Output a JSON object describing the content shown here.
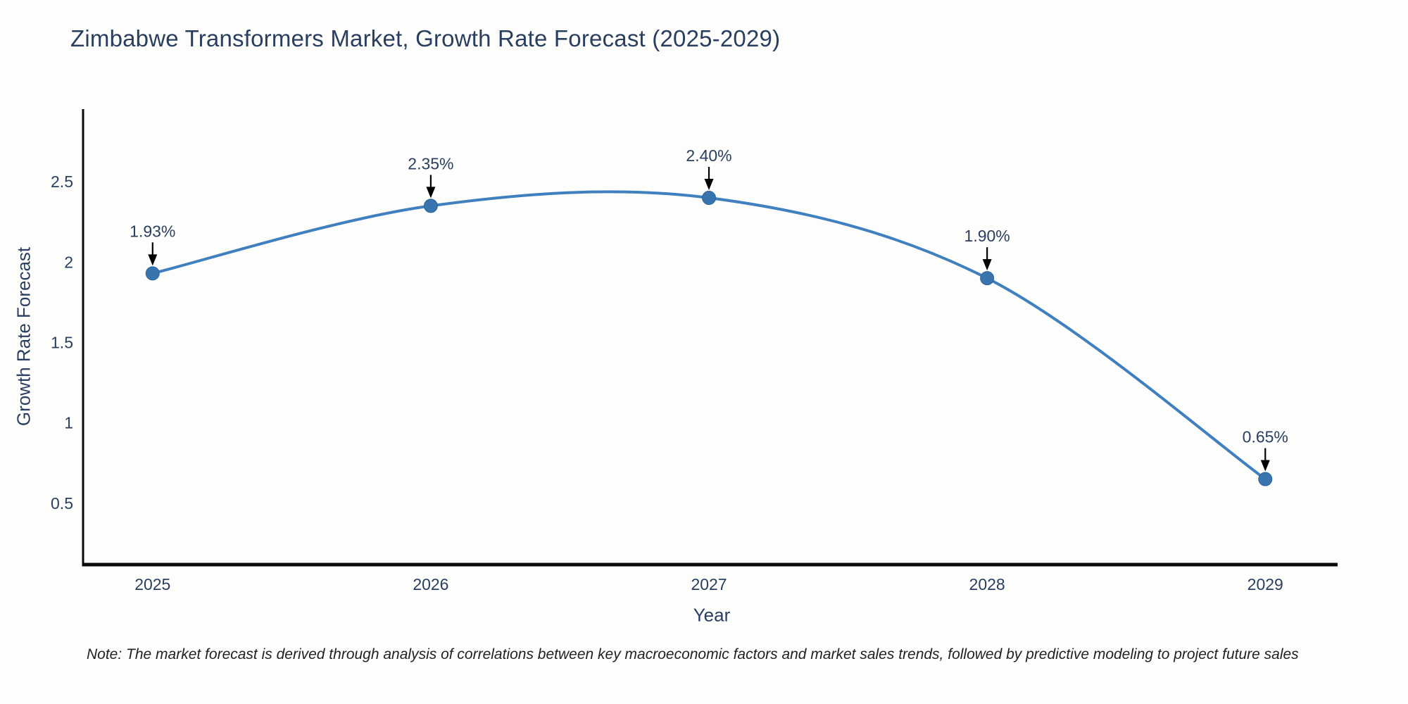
{
  "note": "Note: The market forecast is derived through analysis of correlations between key macroeconomic factors and market sales trends, followed by predictive modeling to project future sales",
  "chart_data": {
    "type": "line",
    "line_shape": "spline",
    "title": "Zimbabwe Transformers Market, Growth Rate Forecast (2025-2029)",
    "xlabel": "Year",
    "ylabel": "Growth Rate Forecast",
    "x": [
      2025,
      2026,
      2027,
      2028,
      2029
    ],
    "xticks": [
      "2025",
      "2026",
      "2027",
      "2028",
      "2029"
    ],
    "series": [
      {
        "name": "Growth Rate Forecast",
        "values": [
          1.93,
          2.35,
          2.4,
          1.9,
          0.65
        ],
        "point_labels": [
          "1.93%",
          "2.35%",
          "2.40%",
          "1.90%",
          "0.65%"
        ]
      }
    ],
    "yticks": [
      0.5,
      1,
      1.5,
      2,
      2.5
    ],
    "ylim": [
      0.118,
      2.952
    ],
    "xlim": [
      2024.75,
      2029.26
    ],
    "grid": false,
    "legend": "none",
    "marker_size": 9.5,
    "colors": {
      "line": "#4080bf",
      "marker_fill": "#3875ae",
      "marker_edge": "#2d6398",
      "axis_line": "#0a0a0a",
      "tick_text": "#2a3f5f",
      "title_text": "#2a3f5f",
      "annotation_text": "#2a3f5f",
      "arrow": "#000000",
      "note_text": "#222222",
      "background": "#fdfdfc"
    }
  }
}
